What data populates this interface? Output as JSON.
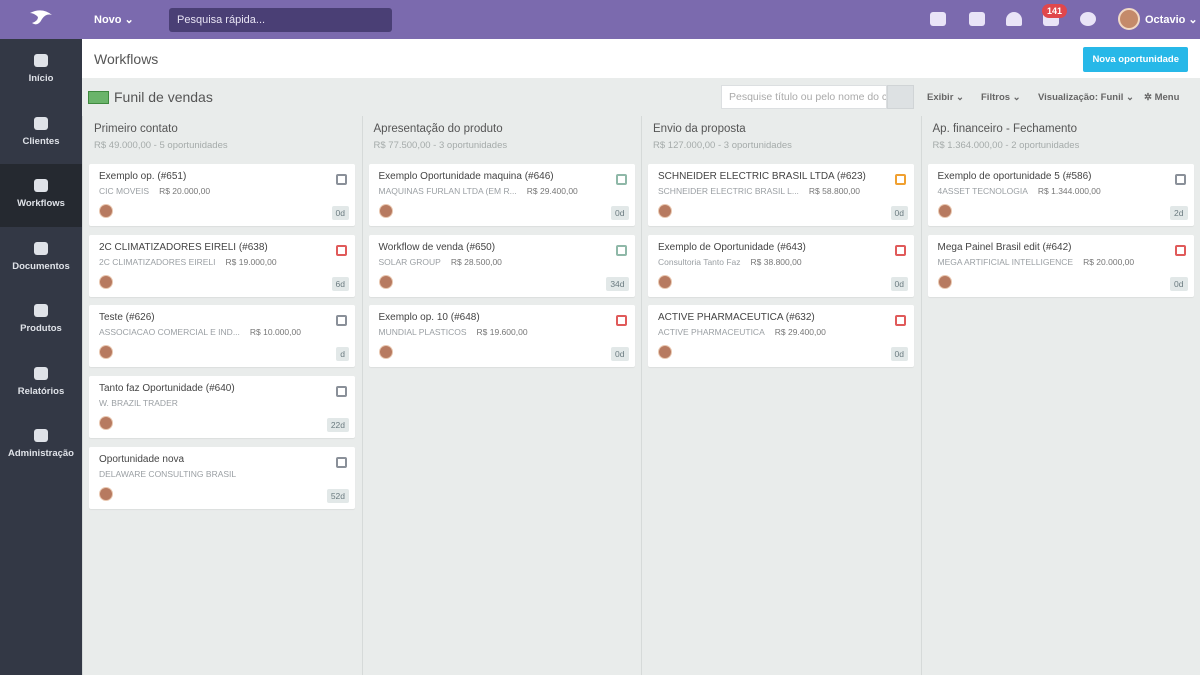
{
  "topbar": {
    "new_label": "Novo",
    "search_placeholder": "Pesquisa rápida...",
    "badge": "141",
    "user": "Octavio"
  },
  "sidebar": [
    {
      "label": "Início"
    },
    {
      "label": "Clientes"
    },
    {
      "label": "Workflows",
      "active": true
    },
    {
      "label": "Documentos"
    },
    {
      "label": "Produtos"
    },
    {
      "label": "Relatórios"
    },
    {
      "label": "Administração"
    }
  ],
  "header": {
    "title": "Workflows",
    "button": "Nova oportunidade"
  },
  "toolbar": {
    "funnel": "Funil de vendas",
    "search_placeholder": "Pesquise título ou pelo nome do c",
    "view": "Exibir",
    "filters": "Filtros",
    "visualization": "Visualização: Funil",
    "menu": "Menu"
  },
  "columns": [
    {
      "title": "Primeiro contato",
      "summary": "R$ 49.000,00 - 5 oportunidades",
      "cards": [
        {
          "title": "Exemplo op. (#651)",
          "company": "CIC MOVEIS",
          "value": "R$ 20.000,00",
          "age": "0d",
          "icon_color": "#8a9099"
        },
        {
          "title": "2C CLIMATIZADORES EIRELI (#638)",
          "company": "2C CLIMATIZADORES EIRELI",
          "value": "R$ 19.000,00",
          "age": "6d",
          "icon_color": "#e05a5a"
        },
        {
          "title": "Teste (#626)",
          "company": "ASSOCIACAO COMERCIAL E IND...",
          "value": "R$ 10.000,00",
          "age": "d",
          "icon_color": "#8a9099"
        },
        {
          "title": "Tanto faz Oportunidade (#640)",
          "company": "W. BRAZIL TRADER",
          "age": "22d",
          "icon_color": "#8a9099"
        },
        {
          "title": "Oportunidade nova",
          "company": "DELAWARE CONSULTING BRASIL",
          "age": "52d",
          "icon_color": "#8a9099"
        }
      ]
    },
    {
      "title": "Apresentação do produto",
      "summary": "R$ 77.500,00 - 3 oportunidades",
      "cards": [
        {
          "title": "Exemplo Oportunidade maquina (#646)",
          "company": "MAQUINAS FURLAN LTDA (EM R...",
          "value": "R$ 29.400,00",
          "age": "0d",
          "icon_color": "#8fb8a8"
        },
        {
          "title": "Workflow de venda (#650)",
          "company": "SOLAR GROUP",
          "value": "R$ 28.500,00",
          "age": "34d",
          "icon_color": "#8fb8a8"
        },
        {
          "title": "Exemplo op. 10 (#648)",
          "company": "MUNDIAL PLASTICOS",
          "value": "R$ 19.600,00",
          "age": "0d",
          "icon_color": "#e05a5a"
        }
      ]
    },
    {
      "title": "Envio da proposta",
      "summary": "R$ 127.000,00 - 3 oportunidades",
      "cards": [
        {
          "title": "SCHNEIDER ELECTRIC BRASIL LTDA (#623)",
          "company": "SCHNEIDER ELECTRIC BRASIL L...",
          "value": "R$ 58.800,00",
          "age": "0d",
          "icon_color": "#f0a030"
        },
        {
          "title": "Exemplo de Oportunidade (#643)",
          "company": "Consultoria Tanto Faz",
          "value": "R$ 38.800,00",
          "age": "0d",
          "icon_color": "#e05a5a"
        },
        {
          "title": "ACTIVE PHARMACEUTICA (#632)",
          "company": "ACTIVE PHARMACEUTICA",
          "value": "R$ 29.400,00",
          "age": "0d",
          "icon_color": "#e05a5a"
        }
      ]
    },
    {
      "title": "Ap. financeiro - Fechamento",
      "summary": "R$ 1.364.000,00 - 2 oportunidades",
      "cards": [
        {
          "title": "Exemplo de oportunidade 5 (#586)",
          "company": "4ASSET TECNOLOGIA",
          "value": "R$ 1.344.000,00",
          "age": "2d",
          "icon_color": "#8a9099"
        },
        {
          "title": "Mega Painel Brasil edit (#642)",
          "company": "MEGA ARTIFICIAL INTELLIGENCE",
          "value": "R$ 20.000,00",
          "age": "0d",
          "icon_color": "#e05a5a"
        }
      ]
    }
  ]
}
